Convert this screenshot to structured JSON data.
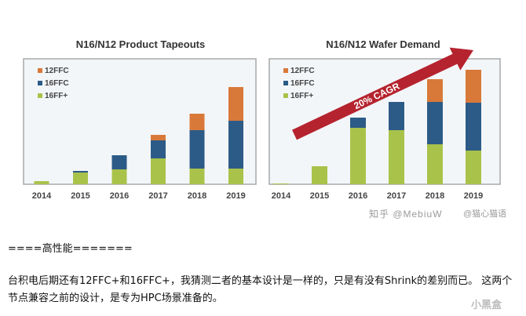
{
  "chart_data": [
    {
      "type": "bar",
      "stacked": true,
      "title": "N16/N12 Product Tapeouts",
      "xlabel": "",
      "ylabel": "",
      "categories": [
        "2014",
        "2015",
        "2016",
        "2017",
        "2018",
        "2019"
      ],
      "series": [
        {
          "name": "16FF+",
          "color": "#a9c24a",
          "values": [
            4,
            15,
            19,
            33,
            20,
            20
          ]
        },
        {
          "name": "16FFC",
          "color": "#2c5b87",
          "values": [
            0,
            2,
            18,
            23,
            49,
            61
          ]
        },
        {
          "name": "12FFC",
          "color": "#d8793a",
          "values": [
            0,
            0,
            0,
            7,
            21,
            43
          ]
        }
      ],
      "legend": [
        "12FFC",
        "16FFC",
        "16FF+"
      ],
      "legend_position": "top-left",
      "ylim": [
        0,
        160
      ],
      "grid": false,
      "note": "relative units; no y-axis shown"
    },
    {
      "type": "bar",
      "stacked": true,
      "title": "N16/N12 Wafer Demand",
      "xlabel": "",
      "ylabel": "",
      "categories": [
        "2014",
        "2015",
        "2016",
        "2017",
        "2018",
        "2019"
      ],
      "series": [
        {
          "name": "16FF+",
          "color": "#a9c24a",
          "values": [
            1,
            23,
            72,
            69,
            51,
            43
          ]
        },
        {
          "name": "16FFC",
          "color": "#2c5b87",
          "values": [
            0,
            0,
            13,
            36,
            54,
            61
          ]
        },
        {
          "name": "12FFC",
          "color": "#d8793a",
          "values": [
            0,
            0,
            0,
            0,
            29,
            42
          ]
        }
      ],
      "legend": [
        "12FFC",
        "16FFC",
        "16FF+"
      ],
      "legend_position": "top-left",
      "annotation": "20% CAGR",
      "annotation_color": "#b5232e",
      "ylim": [
        0,
        160
      ],
      "grid": false,
      "note": "relative units; no y-axis shown"
    }
  ],
  "watermarks": {
    "zhihu": "知乎 @MebiuW",
    "weibo": "@猫心猫语",
    "xiaoheihe": "小黑盒"
  },
  "article": {
    "section_divider": "====高性能=======",
    "paragraph": "台积电后期还有12FFC+和16FFC+，我猜测二者的基本设计是一样的，只是有没有Shrink的差别而已。 这两个节点兼容之前的设计，是专为HPC场景准备的。"
  }
}
